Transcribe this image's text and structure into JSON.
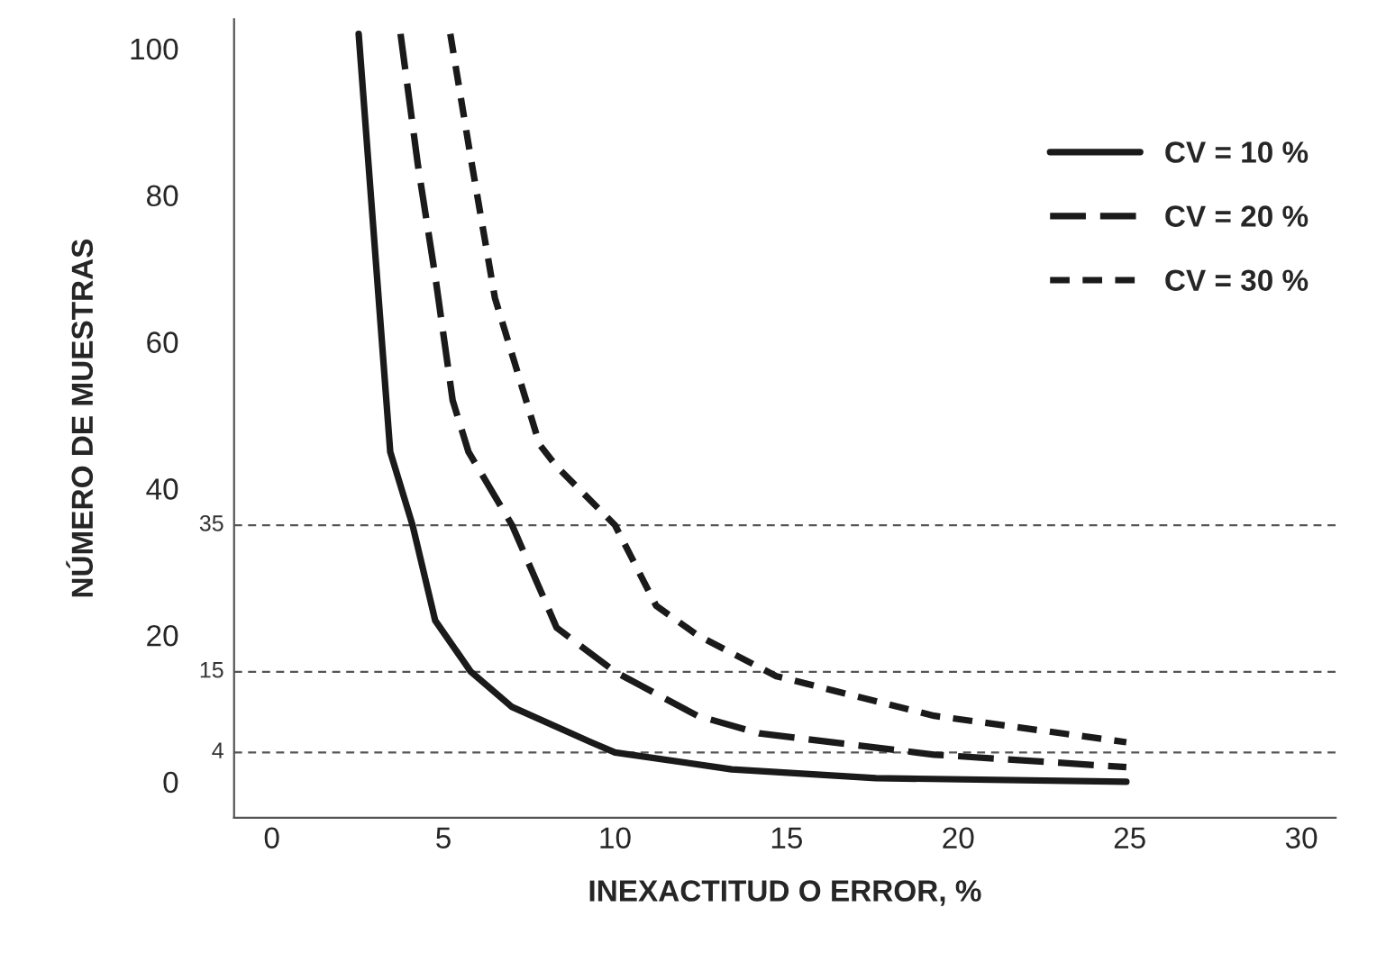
{
  "chart_data": {
    "type": "line",
    "xlabel": "INEXACTITUD O ERROR, %",
    "ylabel": "NÚMERO DE MUESTRAS",
    "xlim": [
      -1.1,
      31
    ],
    "xticks": [
      0,
      5,
      10,
      15,
      20,
      25,
      30
    ],
    "ylim": [
      -4.9,
      104
    ],
    "yticks": [
      0,
      20,
      40,
      60,
      80,
      100
    ],
    "grid": false,
    "legend": "right",
    "marker": "none",
    "ref_lines": [
      {
        "axis": "y",
        "value": 35,
        "label": "35",
        "color": "#555555",
        "line_style": "dashed"
      },
      {
        "axis": "y",
        "value": 15,
        "label": "15",
        "color": "#555555",
        "line_style": "dashed"
      },
      {
        "axis": "y",
        "value": 4,
        "label": "4",
        "color": "#555555",
        "line_style": "dashed"
      }
    ],
    "series": [
      {
        "name": "CV = 10 %",
        "color": "#1a1a1a",
        "line_style": "solid",
        "x": [
          2.53,
          3.45,
          4.1,
          4.76,
          5.8,
          7.0,
          9.3,
          10,
          13.4,
          17.6,
          24.9
        ],
        "values": [
          102,
          45,
          35,
          22,
          15,
          10.2,
          5.4,
          4,
          1.7,
          0.5,
          0
        ]
      },
      {
        "name": "CV = 20 %",
        "color": "#1a1a1a",
        "line_style": "dashed",
        "x": [
          3.75,
          4.26,
          4.76,
          5.27,
          5.73,
          7.0,
          8.3,
          10,
          12.4,
          14.2,
          19.3,
          24.9
        ],
        "values": [
          102,
          84,
          69,
          52,
          45,
          35,
          21,
          15,
          9,
          6.6,
          3.7,
          2
        ]
      },
      {
        "name": "CV = 30 %",
        "color": "#1a1a1a",
        "line_style": "dashed",
        "x": [
          5.2,
          5.8,
          6.5,
          7.8,
          8.3,
          10,
          11.2,
          12.4,
          14.7,
          19.3,
          24.9
        ],
        "values": [
          102,
          85,
          66,
          46,
          43,
          35,
          24,
          20,
          14.4,
          9,
          5.4
        ]
      }
    ]
  }
}
